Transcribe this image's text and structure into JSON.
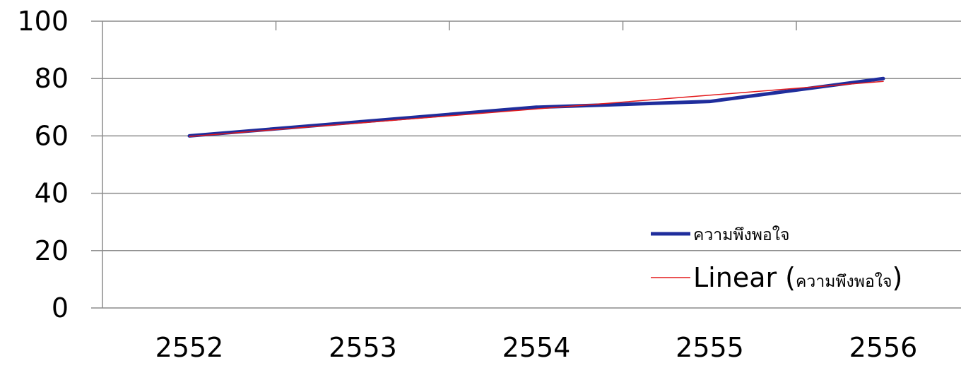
{
  "chart_data": {
    "type": "line",
    "categories": [
      "2552",
      "2553",
      "2554",
      "2555",
      "2556"
    ],
    "x": [
      2552,
      2553,
      2554,
      2555,
      2556
    ],
    "series": [
      {
        "name": "ความพึงพอใจ",
        "values": [
          60,
          65,
          70,
          72,
          80
        ],
        "color": "#1f2d9c"
      },
      {
        "name": "Linear (ความพึงพอใจ)",
        "values": [
          59.8,
          64.6,
          69.4,
          74.2,
          79.0
        ],
        "color": "#e31a1c",
        "trendline": "linear"
      }
    ],
    "yticks": [
      "0",
      "20",
      "40",
      "60",
      "80",
      "100"
    ],
    "ylim": [
      0,
      100
    ],
    "grid": "horizontal",
    "legend": {
      "position": "bottom-right",
      "line1_label": "ความพึงพอใจ",
      "line2_prefix": "Linear (",
      "line2_name": "ความพึงพอใจ",
      "line2_suffix": ")"
    },
    "title": "",
    "xlabel": "",
    "ylabel": ""
  }
}
